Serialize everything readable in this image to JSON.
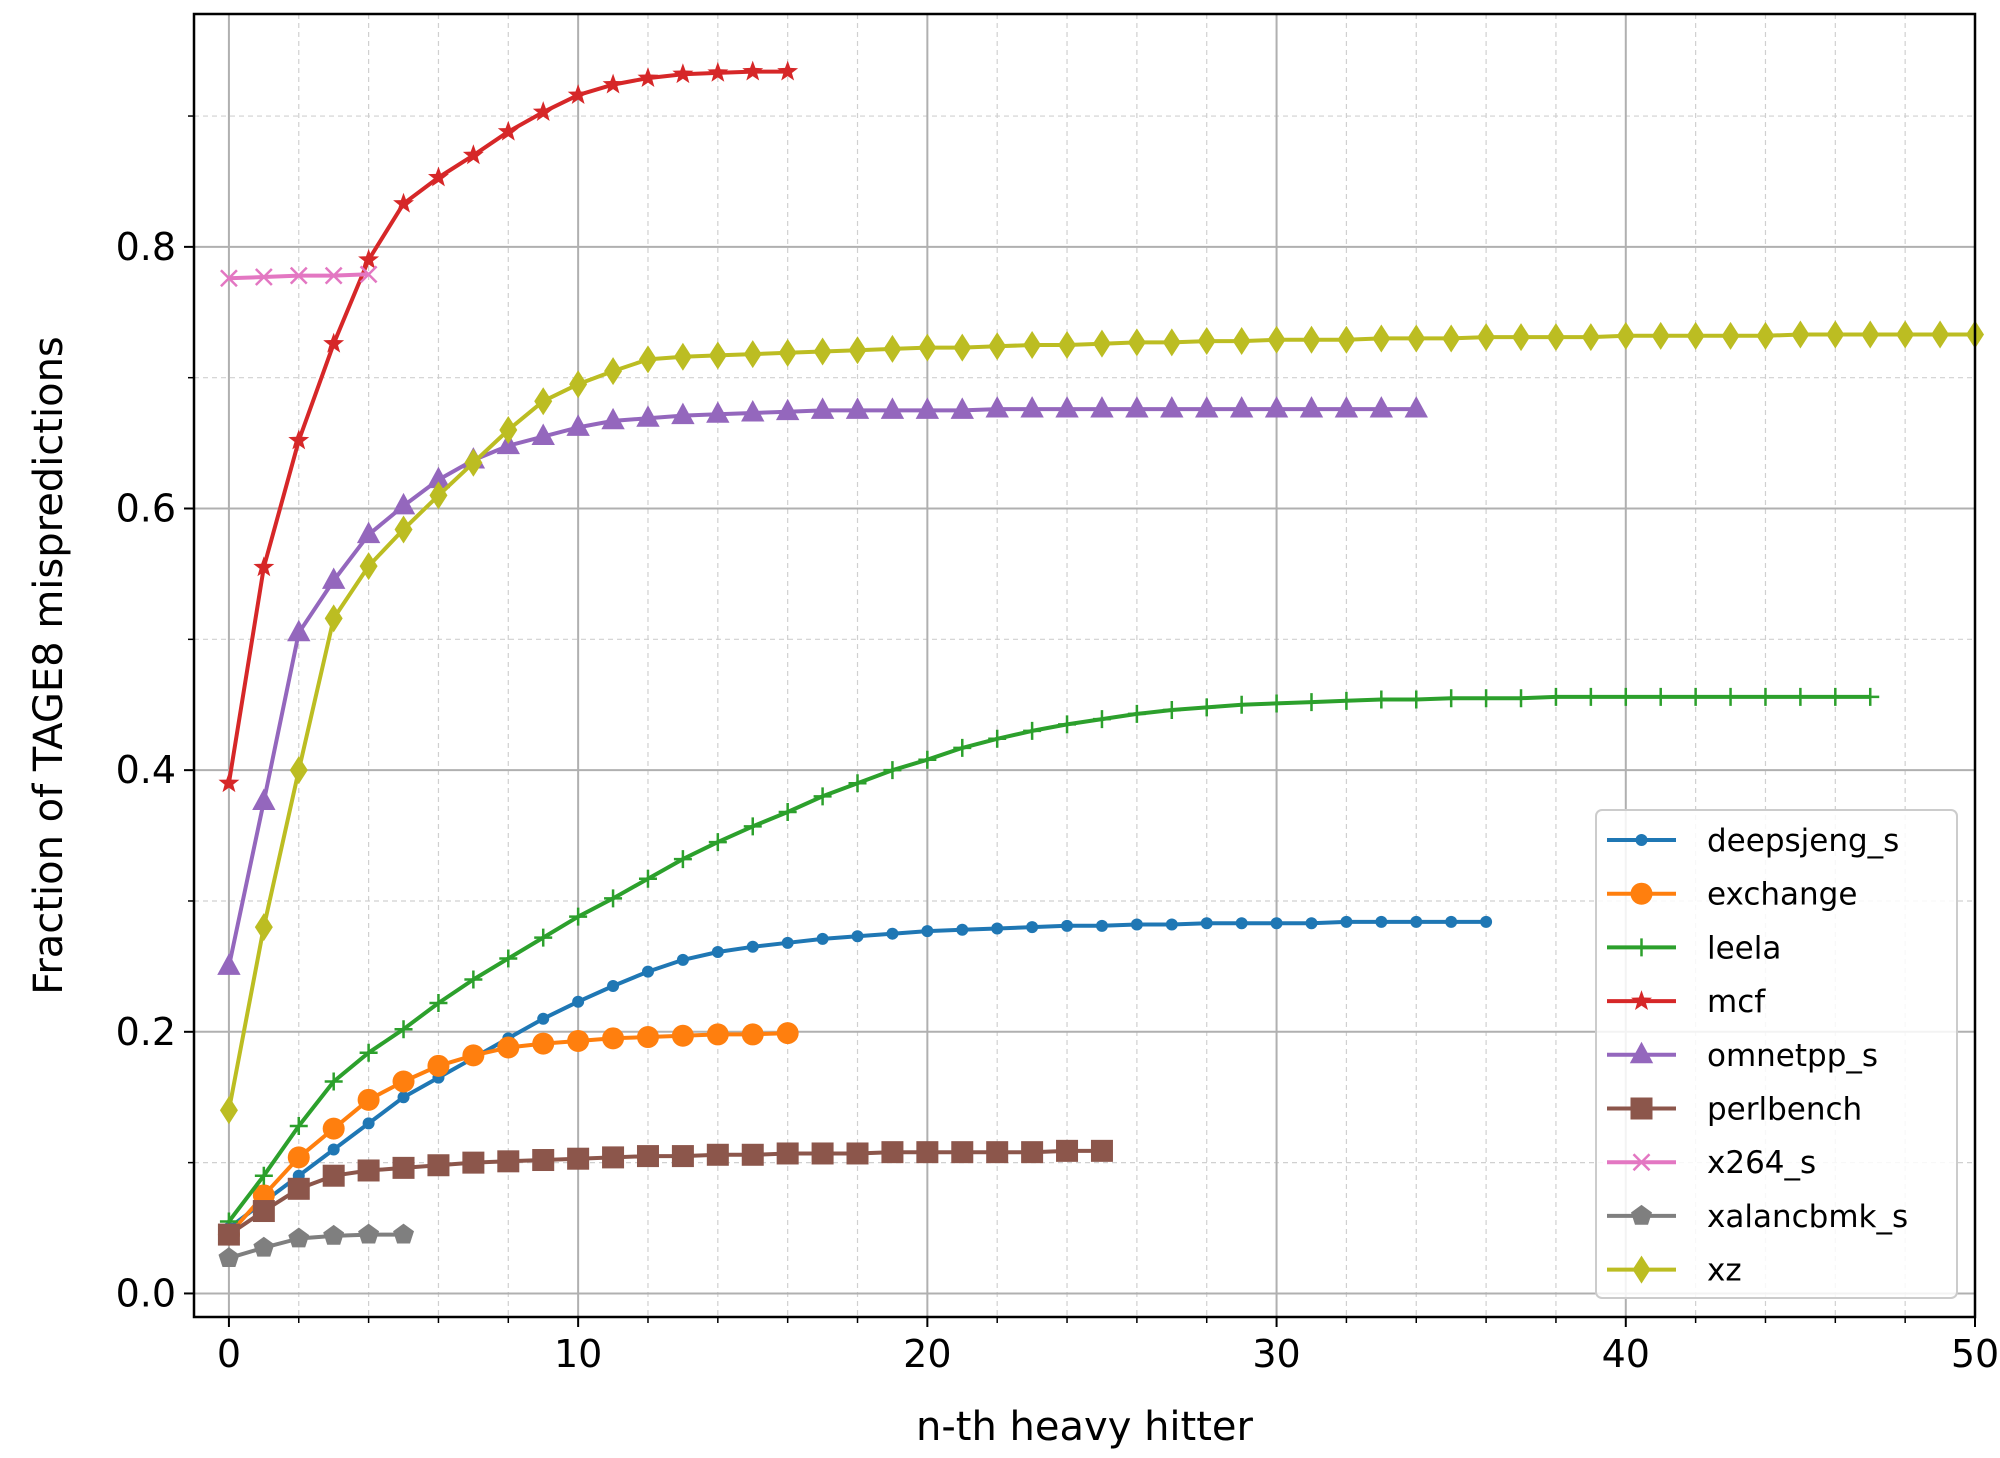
{
  "chart_data": {
    "type": "line",
    "title": "",
    "xlabel": "n-th heavy hitter",
    "ylabel": "Fraction of TAGE8 mispredictions",
    "xlim": [
      -1,
      50
    ],
    "ylim": [
      -0.018,
      0.978
    ],
    "x_ticks": [
      0,
      10,
      20,
      30,
      40,
      50
    ],
    "x_tick_labels": [
      "0",
      "10",
      "20",
      "30",
      "40",
      "50"
    ],
    "y_ticks": [
      0.0,
      0.2,
      0.4,
      0.6,
      0.8
    ],
    "y_tick_labels": [
      "0.0",
      "0.2",
      "0.4",
      "0.6",
      "0.8"
    ],
    "grid": true,
    "minor_grid": true,
    "legend_position": "lower-right",
    "series": [
      {
        "name": "deepsjeng_s",
        "color": "#1f77b4",
        "marker": "point",
        "values": [
          0.05,
          0.07,
          0.09,
          0.11,
          0.13,
          0.15,
          0.165,
          0.18,
          0.195,
          0.21,
          0.223,
          0.235,
          0.246,
          0.255,
          0.261,
          0.265,
          0.268,
          0.271,
          0.273,
          0.275,
          0.277,
          0.278,
          0.279,
          0.28,
          0.281,
          0.281,
          0.282,
          0.282,
          0.283,
          0.283,
          0.283,
          0.283,
          0.284,
          0.284,
          0.284,
          0.284,
          0.284
        ]
      },
      {
        "name": "exchange",
        "color": "#ff7f0e",
        "marker": "circle",
        "values": [
          0.045,
          0.075,
          0.104,
          0.126,
          0.148,
          0.162,
          0.174,
          0.182,
          0.188,
          0.191,
          0.193,
          0.195,
          0.196,
          0.197,
          0.198,
          0.198,
          0.199
        ]
      },
      {
        "name": "leela",
        "color": "#2ca02c",
        "marker": "plus",
        "values": [
          0.055,
          0.09,
          0.128,
          0.162,
          0.184,
          0.202,
          0.222,
          0.24,
          0.256,
          0.272,
          0.288,
          0.302,
          0.317,
          0.332,
          0.345,
          0.357,
          0.368,
          0.38,
          0.39,
          0.4,
          0.408,
          0.417,
          0.424,
          0.43,
          0.435,
          0.439,
          0.443,
          0.446,
          0.448,
          0.45,
          0.451,
          0.452,
          0.453,
          0.454,
          0.454,
          0.455,
          0.455,
          0.455,
          0.456,
          0.456,
          0.456,
          0.456,
          0.456,
          0.456,
          0.456,
          0.456,
          0.456,
          0.456
        ]
      },
      {
        "name": "mcf",
        "color": "#d62728",
        "marker": "star",
        "values": [
          0.39,
          0.555,
          0.652,
          0.726,
          0.79,
          0.833,
          0.853,
          0.87,
          0.888,
          0.903,
          0.916,
          0.924,
          0.929,
          0.932,
          0.933,
          0.934,
          0.934
        ]
      },
      {
        "name": "omnetpp_s",
        "color": "#9467bd",
        "marker": "triangle",
        "values": [
          0.25,
          0.376,
          0.505,
          0.545,
          0.58,
          0.602,
          0.622,
          0.637,
          0.648,
          0.655,
          0.662,
          0.667,
          0.669,
          0.671,
          0.672,
          0.673,
          0.674,
          0.675,
          0.675,
          0.675,
          0.675,
          0.675,
          0.676,
          0.676,
          0.676,
          0.676,
          0.676,
          0.676,
          0.676,
          0.676,
          0.676,
          0.676,
          0.676,
          0.676,
          0.676
        ]
      },
      {
        "name": "perlbench",
        "color": "#8c564b",
        "marker": "square",
        "values": [
          0.045,
          0.063,
          0.08,
          0.09,
          0.094,
          0.096,
          0.098,
          0.1,
          0.101,
          0.102,
          0.103,
          0.104,
          0.105,
          0.105,
          0.106,
          0.106,
          0.107,
          0.107,
          0.107,
          0.108,
          0.108,
          0.108,
          0.108,
          0.108,
          0.109,
          0.109
        ]
      },
      {
        "name": "x264_s",
        "color": "#e377c2",
        "marker": "x",
        "values": [
          0.776,
          0.777,
          0.778,
          0.778,
          0.779
        ]
      },
      {
        "name": "xalancbmk_s",
        "color": "#7f7f7f",
        "marker": "pentagon",
        "values": [
          0.027,
          0.035,
          0.042,
          0.044,
          0.045,
          0.045
        ]
      },
      {
        "name": "xz",
        "color": "#bcbd22",
        "marker": "diamond",
        "values": [
          0.14,
          0.28,
          0.4,
          0.516,
          0.556,
          0.584,
          0.61,
          0.635,
          0.66,
          0.682,
          0.695,
          0.705,
          0.714,
          0.716,
          0.717,
          0.718,
          0.719,
          0.72,
          0.721,
          0.722,
          0.723,
          0.723,
          0.724,
          0.725,
          0.725,
          0.726,
          0.727,
          0.727,
          0.728,
          0.728,
          0.729,
          0.729,
          0.729,
          0.73,
          0.73,
          0.73,
          0.731,
          0.731,
          0.731,
          0.731,
          0.732,
          0.732,
          0.732,
          0.732,
          0.732,
          0.733,
          0.733,
          0.733,
          0.733,
          0.733,
          0.733
        ]
      }
    ]
  }
}
